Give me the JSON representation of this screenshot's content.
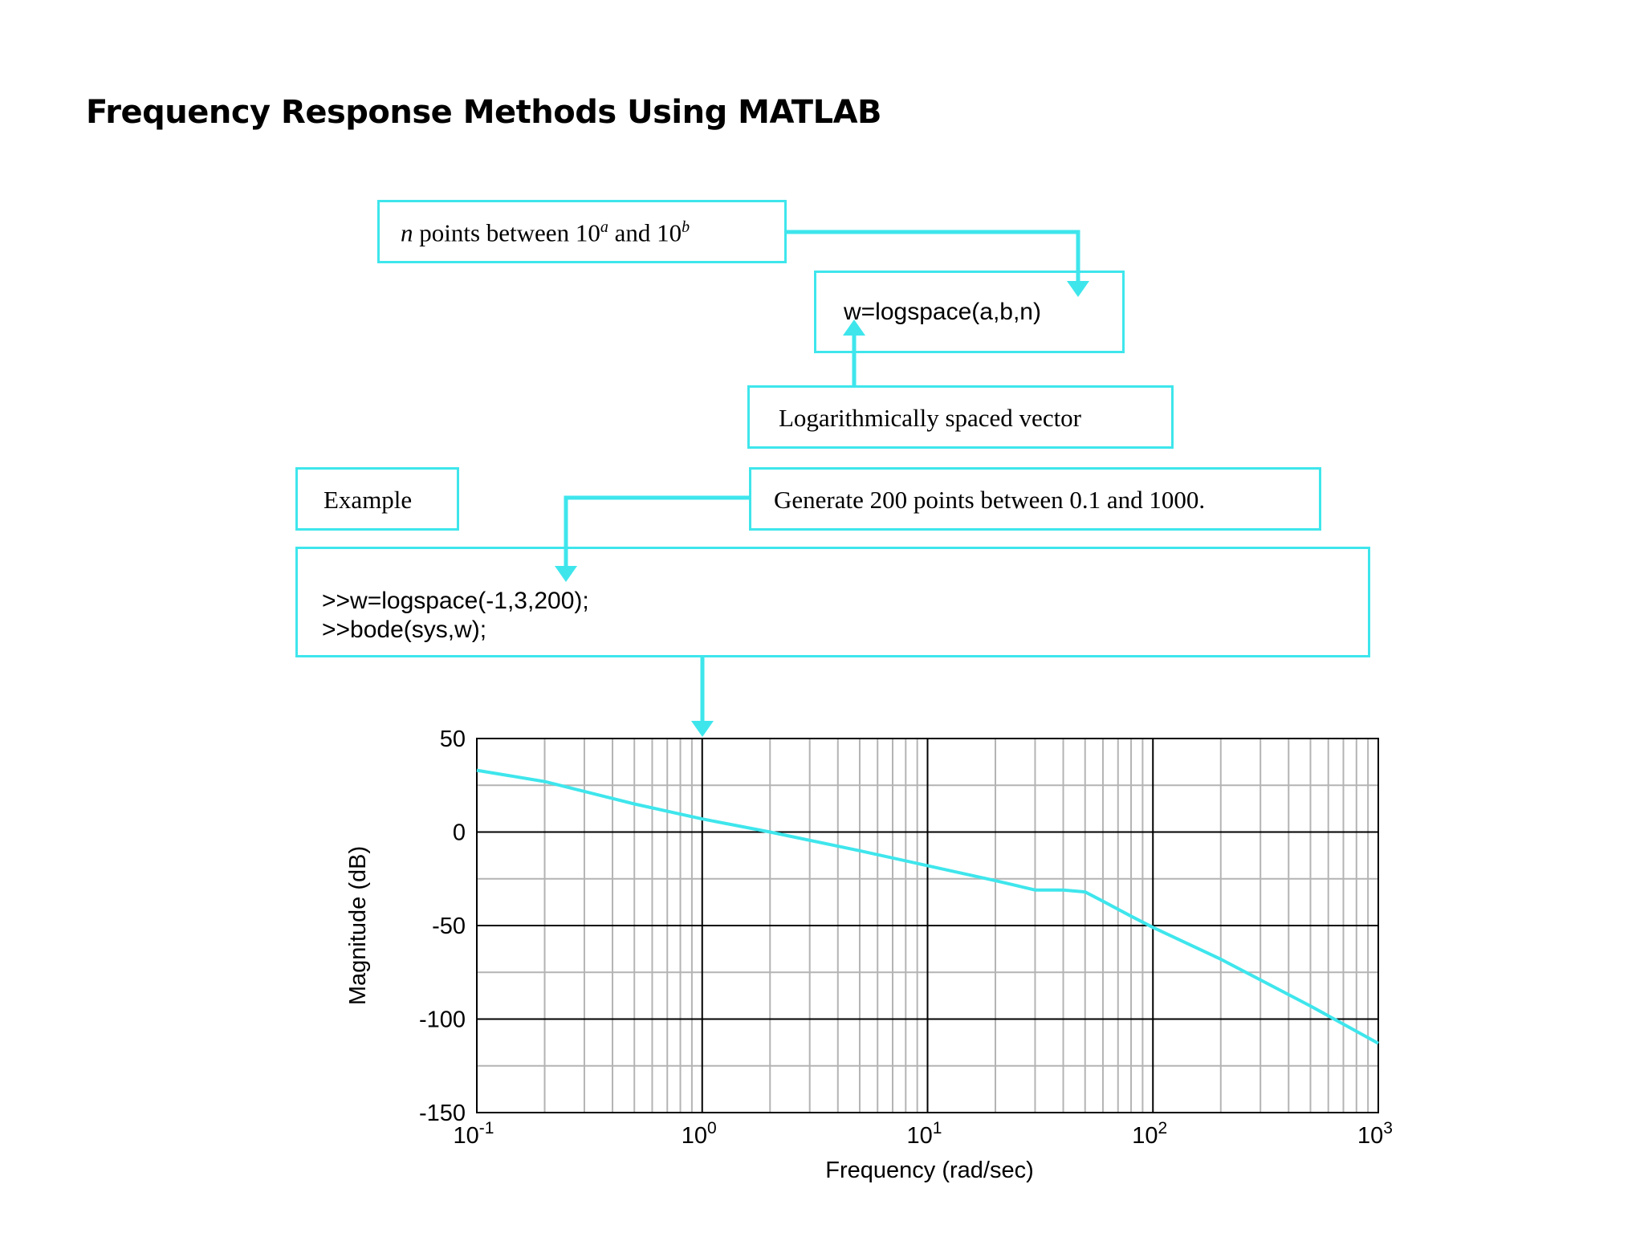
{
  "title": "Frequency Response Methods Using MATLAB",
  "callouts": {
    "npoints": {
      "pre": "n",
      "mid1": " points between 10",
      "sup_a": "a",
      "mid2": " and 10",
      "sup_b": "b"
    },
    "logspace_syntax": "w=logspace(a,b,n)",
    "log_vector": "Logarithmically spaced vector",
    "example": "Example",
    "generate": "Generate 200 points between 0.1 and 1000.",
    "code": [
      ">>w=logspace(-1,3,200);",
      ">>bode(sys,w);"
    ]
  },
  "colors": {
    "accent": "#3ee6ec",
    "grid_major": "#000000",
    "grid_minor": "#b4b4b4"
  },
  "chart_data": {
    "type": "line",
    "xlabel": "Frequency (rad/sec)",
    "ylabel": "Magnitude (dB)",
    "xscale": "log",
    "xlim": [
      0.1,
      1000
    ],
    "ylim": [
      -150,
      50
    ],
    "xticks": [
      {
        "value": 0.1,
        "base": "10",
        "exp": "-1"
      },
      {
        "value": 1,
        "base": "10",
        "exp": "0"
      },
      {
        "value": 10,
        "base": "10",
        "exp": "1"
      },
      {
        "value": 100,
        "base": "10",
        "exp": "2"
      },
      {
        "value": 1000,
        "base": "10",
        "exp": "3"
      }
    ],
    "yticks": [
      {
        "value": 50,
        "label": "50"
      },
      {
        "value": 0,
        "label": "0"
      },
      {
        "value": -50,
        "label": "-50"
      },
      {
        "value": -100,
        "label": "-100"
      },
      {
        "value": -150,
        "label": "-150"
      }
    ],
    "grid": true,
    "series": [
      {
        "x": [
          0.1,
          0.2,
          0.5,
          1,
          2,
          5,
          10,
          20,
          30,
          40,
          50,
          60,
          80,
          100,
          200,
          500,
          1000
        ],
        "y": [
          33,
          27,
          15,
          7,
          0,
          -10,
          -18,
          -26,
          -31,
          -31,
          -32,
          -37,
          -45,
          -51,
          -68,
          -93,
          -113
        ]
      }
    ]
  }
}
